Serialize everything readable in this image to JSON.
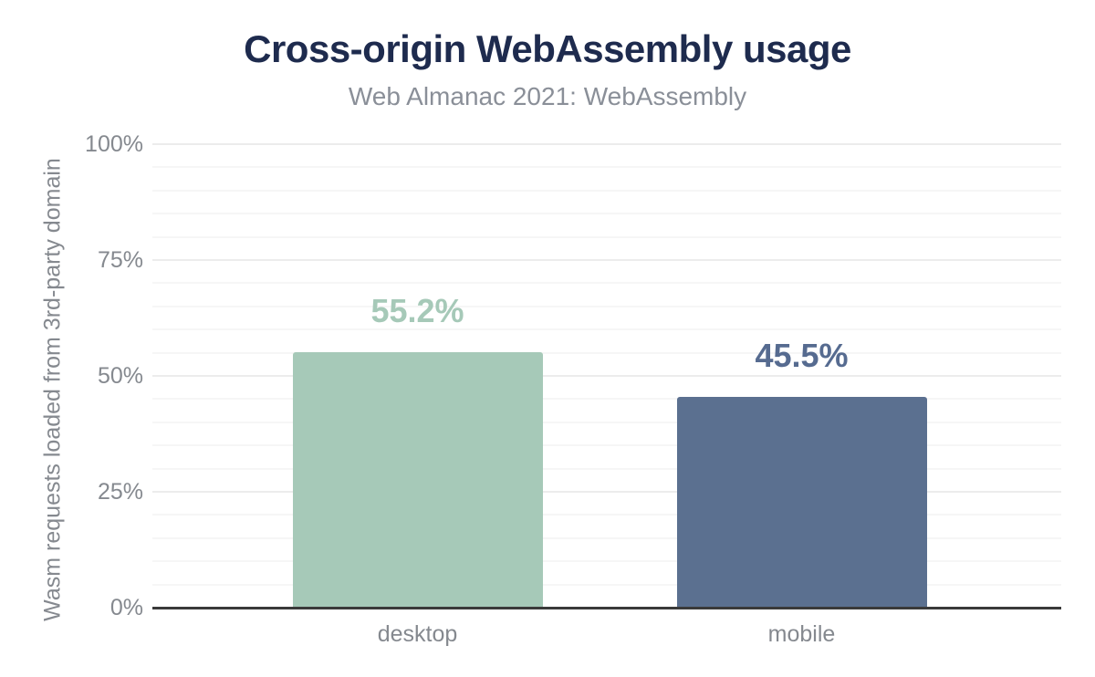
{
  "chart_data": {
    "type": "bar",
    "title": "Cross-origin WebAssembly usage",
    "subtitle": "Web Almanac 2021: WebAssembly",
    "categories": [
      "desktop",
      "mobile"
    ],
    "values": [
      55.2,
      45.5
    ],
    "value_labels": [
      "55.2%",
      "45.5%"
    ],
    "series_colors": [
      "#a6c9b8",
      "#5b7090"
    ],
    "value_label_colors": [
      "#a6c9b8",
      "#566b90"
    ],
    "xlabel": "",
    "ylabel": "Wasm requests loaded from 3rd-party domain",
    "ylim": [
      0,
      100
    ],
    "y_ticks": [
      0,
      25,
      50,
      75,
      100
    ],
    "y_tick_labels": [
      "0%",
      "25%",
      "50%",
      "75%",
      "100%"
    ],
    "y_minor_tick_step": 5,
    "grid": true,
    "legend": "none",
    "colors": {
      "title": "#1e2b4e",
      "subtitle": "#8a8f98",
      "axis_text": "#85898f",
      "axis_line": "#3a3a3a",
      "grid_major": "#ececec",
      "grid_minor": "#f6f6f6",
      "background": "#ffffff"
    }
  }
}
